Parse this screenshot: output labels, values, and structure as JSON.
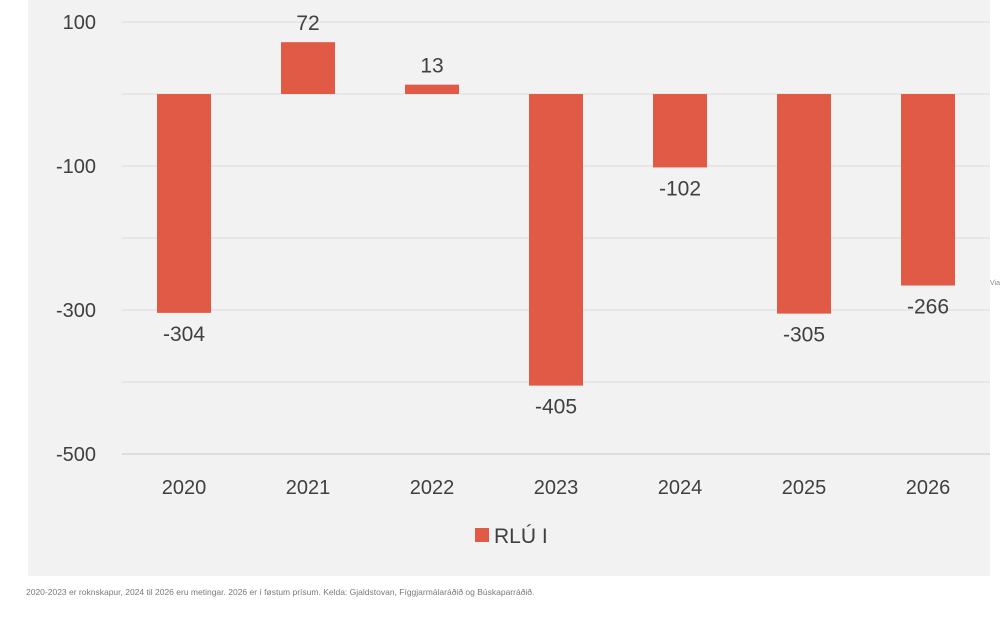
{
  "chart_data": {
    "type": "bar",
    "categories": [
      "2020",
      "2021",
      "2022",
      "2023",
      "2024",
      "2025",
      "2026"
    ],
    "series": [
      {
        "name": "RLÚ I",
        "values": [
          -304,
          72,
          13,
          -405,
          -102,
          -305,
          -266
        ],
        "color": "#e05a45"
      }
    ],
    "data_labels": [
      "-304",
      "72",
      "13",
      "-405",
      "-102",
      "-305",
      "-266"
    ],
    "y_ticks": [
      100,
      -100,
      -300,
      -500
    ],
    "y_tick_labels": [
      "100",
      "-100",
      "-300",
      "-500"
    ],
    "ylim": [
      -500,
      100
    ],
    "grid": true,
    "legend": "bottom-center",
    "title": "",
    "xlabel": "",
    "ylabel": ""
  },
  "footnote": "2020-2023 er roknskapur, 2024 til 2026 eru metingar. 2026 er í føstum prísum. Kelda: Gjaldstovan, Fíggjarmálaráðið og Búskaparráðið.",
  "edge_text": "Via"
}
